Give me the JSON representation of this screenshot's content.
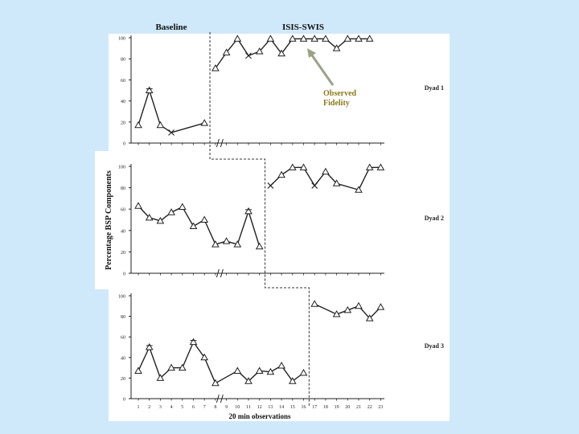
{
  "header": {
    "phase_baseline": "Baseline",
    "phase_intervention": "ISIS-SWIS"
  },
  "annotation": {
    "line1": "Observed",
    "line2": "Fidelity"
  },
  "colors": {
    "background": "#cfe9fb",
    "annotation": "#8a7a1a",
    "arrow": "#9aa386",
    "line": "#222222"
  },
  "chart_data": {
    "type": "line",
    "ylabel": "Percentage BSP Components",
    "xlabel": "20 min observations",
    "x_ticks": [
      1,
      2,
      3,
      4,
      5,
      6,
      7,
      8,
      9,
      10,
      11,
      12,
      13,
      14,
      15,
      16,
      17,
      18,
      19,
      20,
      21,
      22,
      23
    ],
    "panels": [
      {
        "name": "Dyad 1",
        "yticks": [
          0,
          20,
          40,
          60,
          80,
          100
        ],
        "ylim": [
          0,
          100
        ],
        "phase_change_after": 7,
        "baseline": [
          {
            "x": 1,
            "y": 17,
            "m": "tri"
          },
          {
            "x": 2,
            "y": 50,
            "m": "star"
          },
          {
            "x": 3,
            "y": 17,
            "m": "tri"
          },
          {
            "x": 4,
            "y": 10,
            "m": "x"
          },
          {
            "x": 7,
            "y": 19,
            "m": "tri"
          }
        ],
        "intervention": [
          {
            "x": 8,
            "y": 71,
            "m": "tri"
          },
          {
            "x": 9,
            "y": 86,
            "m": "tri"
          },
          {
            "x": 10,
            "y": 99,
            "m": "tri"
          },
          {
            "x": 11,
            "y": 83,
            "m": "x"
          },
          {
            "x": 12,
            "y": 87,
            "m": "tri"
          },
          {
            "x": 13,
            "y": 99,
            "m": "tri"
          },
          {
            "x": 14,
            "y": 85,
            "m": "tri"
          },
          {
            "x": 15,
            "y": 99,
            "m": "tri"
          },
          {
            "x": 16,
            "y": 99,
            "m": "tri"
          },
          {
            "x": 17,
            "y": 99,
            "m": "tri"
          },
          {
            "x": 18,
            "y": 99,
            "m": "tri"
          },
          {
            "x": 19,
            "y": 90,
            "m": "tri"
          },
          {
            "x": 20,
            "y": 99,
            "m": "tri"
          },
          {
            "x": 21,
            "y": 99,
            "m": "tri"
          },
          {
            "x": 22,
            "y": 99,
            "m": "tri"
          }
        ]
      },
      {
        "name": "Dyad 2",
        "yticks": [
          0,
          20,
          40,
          60,
          80,
          100
        ],
        "ylim": [
          0,
          100
        ],
        "phase_change_after": 12,
        "baseline": [
          {
            "x": 1,
            "y": 63,
            "m": "tri"
          },
          {
            "x": 2,
            "y": 52,
            "m": "tri"
          },
          {
            "x": 3,
            "y": 49,
            "m": "tri"
          },
          {
            "x": 4,
            "y": 57,
            "m": "tri"
          },
          {
            "x": 5,
            "y": 62,
            "m": "tri"
          },
          {
            "x": 6,
            "y": 44,
            "m": "tri"
          },
          {
            "x": 7,
            "y": 50,
            "m": "tri"
          },
          {
            "x": 8,
            "y": 27,
            "m": "tri"
          },
          {
            "x": 9,
            "y": 30,
            "m": "tri"
          },
          {
            "x": 10,
            "y": 27,
            "m": "tri"
          },
          {
            "x": 11,
            "y": 58,
            "m": "star"
          },
          {
            "x": 12,
            "y": 25,
            "m": "tri"
          }
        ],
        "intervention": [
          {
            "x": 13,
            "y": 82,
            "m": "x"
          },
          {
            "x": 14,
            "y": 92,
            "m": "tri"
          },
          {
            "x": 15,
            "y": 99,
            "m": "tri"
          },
          {
            "x": 16,
            "y": 99,
            "m": "tri"
          },
          {
            "x": 17,
            "y": 82,
            "m": "x"
          },
          {
            "x": 18,
            "y": 95,
            "m": "tri"
          },
          {
            "x": 19,
            "y": 84,
            "m": "tri"
          },
          {
            "x": 21,
            "y": 78,
            "m": "tri"
          },
          {
            "x": 22,
            "y": 99,
            "m": "tri"
          },
          {
            "x": 23,
            "y": 99,
            "m": "tri"
          }
        ]
      },
      {
        "name": "Dyad 3",
        "yticks": [
          0,
          20,
          40,
          60,
          80,
          100
        ],
        "ylim": [
          0,
          100
        ],
        "phase_change_after": 16,
        "baseline": [
          {
            "x": 1,
            "y": 27,
            "m": "tri"
          },
          {
            "x": 2,
            "y": 50,
            "m": "star"
          },
          {
            "x": 3,
            "y": 20,
            "m": "tri"
          },
          {
            "x": 4,
            "y": 30,
            "m": "tri"
          },
          {
            "x": 5,
            "y": 30,
            "m": "tri"
          },
          {
            "x": 6,
            "y": 55,
            "m": "star"
          },
          {
            "x": 7,
            "y": 40,
            "m": "tri"
          },
          {
            "x": 8,
            "y": 15,
            "m": "tri"
          },
          {
            "x": 10,
            "y": 27,
            "m": "tri"
          },
          {
            "x": 11,
            "y": 17,
            "m": "tri"
          },
          {
            "x": 12,
            "y": 27,
            "m": "tri"
          },
          {
            "x": 13,
            "y": 26,
            "m": "tri"
          },
          {
            "x": 14,
            "y": 32,
            "m": "tri"
          },
          {
            "x": 15,
            "y": 17,
            "m": "tri"
          },
          {
            "x": 16,
            "y": 25,
            "m": "tri"
          }
        ],
        "intervention": [
          {
            "x": 17,
            "y": 92,
            "m": "tri"
          },
          {
            "x": 19,
            "y": 82,
            "m": "tri"
          },
          {
            "x": 20,
            "y": 86,
            "m": "tri"
          },
          {
            "x": 21,
            "y": 90,
            "m": "tri"
          },
          {
            "x": 22,
            "y": 78,
            "m": "tri"
          },
          {
            "x": 23,
            "y": 89,
            "m": "tri"
          }
        ]
      }
    ]
  }
}
